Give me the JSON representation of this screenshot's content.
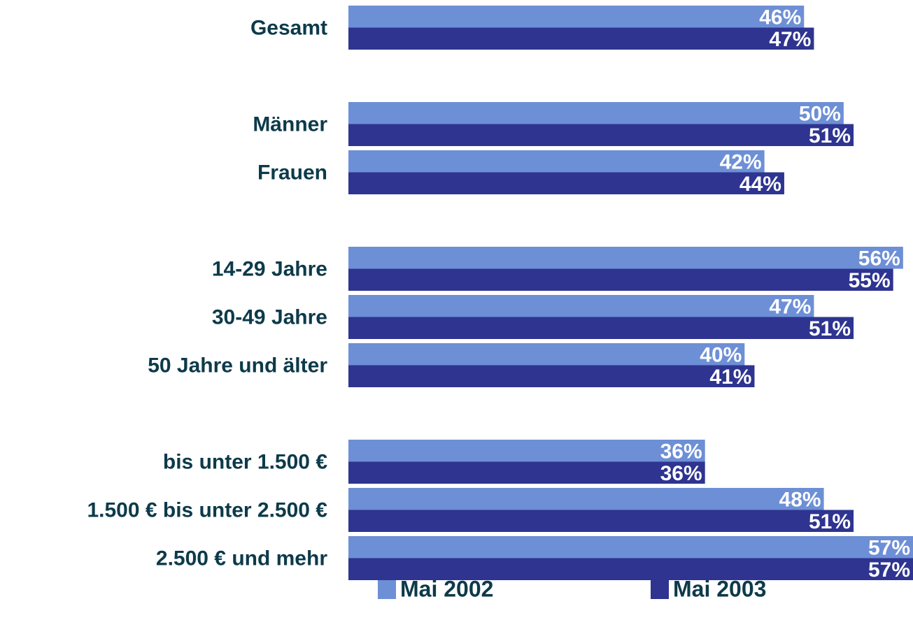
{
  "chart_data": {
    "type": "hbar",
    "categories": [
      "Gesamt",
      null,
      "Männer",
      "Frauen",
      null,
      "14-29 Jahre",
      "30-49 Jahre",
      "50 Jahre und älter",
      null,
      "bis unter 1.500 €",
      "1.500 € bis unter 2.500 €",
      "2.500 € und mehr"
    ],
    "series": [
      {
        "name": "Mai 2002",
        "color": "#6d8fd6",
        "values": [
          46,
          null,
          50,
          42,
          null,
          56,
          47,
          40,
          null,
          36,
          48,
          57
        ],
        "value_labels": [
          "46%",
          null,
          "50%",
          "42%",
          null,
          "56%",
          "47%",
          "40%",
          null,
          "36%",
          "48%",
          "57%"
        ]
      },
      {
        "name": "Mai 2003",
        "color": "#2e3490",
        "values": [
          47,
          null,
          51,
          44,
          null,
          55,
          51,
          41,
          null,
          36,
          51,
          57
        ],
        "value_labels": [
          "47%",
          null,
          "51%",
          "44%",
          null,
          "55%",
          "51%",
          "41%",
          null,
          "36%",
          "51%",
          "57%"
        ]
      }
    ],
    "xlim": [
      0,
      57
    ],
    "legend": "bottom"
  }
}
